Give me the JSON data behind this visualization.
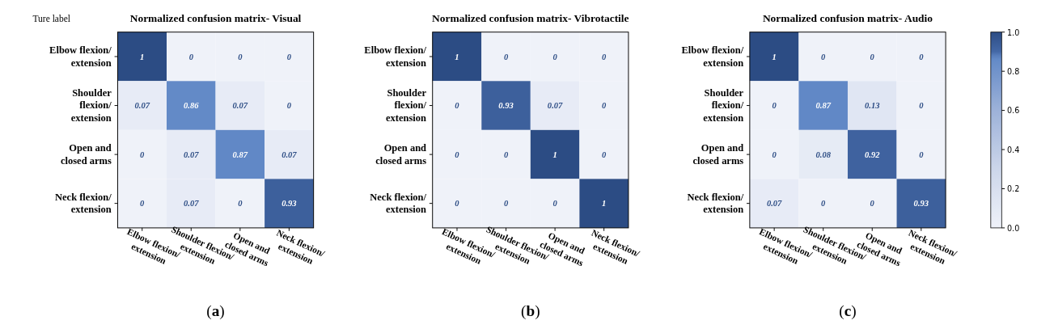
{
  "chart_data": [
    {
      "type": "heatmap",
      "title": "Normalized confusion matrix- Visual",
      "ylabel": "Ture label",
      "categories": [
        "Elbow flexion/\nextension",
        "Shoulder flexion/\nextension",
        "Open and\nclosed arms",
        "Neck flexion/\nextension"
      ],
      "y_categories": [
        "Elbow flexion/\nextension",
        "Shoulder\nflexion/\nextension",
        "Open and\nclosed arms",
        "Neck flexion/\nextension"
      ],
      "cells": [
        [
          1,
          0,
          0,
          0
        ],
        [
          0.07,
          0.86,
          0.07,
          0
        ],
        [
          0,
          0.07,
          0.87,
          0.07
        ],
        [
          0,
          0.07,
          0,
          0.93
        ]
      ],
      "data_labels": true,
      "annotations": [
        "(a)"
      ]
    },
    {
      "type": "heatmap",
      "title": "Normalized confusion matrix- Vibrotactile",
      "categories": [
        "Elbow flexion/\nextension",
        "Shoulder flexion/\nextension",
        "Open and\nclosed arms",
        "Neck flexion/\nextension"
      ],
      "y_categories": [
        "Elbow flexion/\nextension",
        "Shoulder\nflexion/\nextension",
        "Open and\nclosed arms",
        "Neck flexion/\nextension"
      ],
      "cells": [
        [
          1,
          0,
          0,
          0
        ],
        [
          0,
          0.93,
          0.07,
          0
        ],
        [
          0,
          0,
          1,
          0
        ],
        [
          0,
          0,
          0,
          1
        ]
      ],
      "data_labels": true,
      "annotations": [
        "(b)"
      ]
    },
    {
      "type": "heatmap",
      "title": "Normalized confusion matrix- Audio",
      "categories": [
        "Elbow flexion/\nextension",
        "Shoulder flexion/\nextension",
        "Open and\nclosed arms",
        "Neck flexion/\nextension"
      ],
      "y_categories": [
        "Elbow flexion/\nextension",
        "Shoulder\nflexion/\nextension",
        "Open and\nclosed arms",
        "Neck flexion/\nextension"
      ],
      "cells": [
        [
          1,
          0,
          0,
          0
        ],
        [
          0,
          0.87,
          0.13,
          0
        ],
        [
          0,
          0.08,
          0.92,
          0
        ],
        [
          0.07,
          0,
          0,
          0.93
        ]
      ],
      "data_labels": true,
      "annotations": [
        "(c)"
      ],
      "clim": [
        0,
        1
      ],
      "cticks": [
        {
          "value": 0,
          "label": "0.0"
        },
        {
          "value": 0.2,
          "label": "0.2"
        },
        {
          "value": 0.4,
          "label": "0.4"
        },
        {
          "value": 0.6,
          "label": "0.6"
        },
        {
          "value": 0.8,
          "label": "0.8"
        },
        {
          "value": 1,
          "label": "1.0"
        }
      ]
    }
  ]
}
